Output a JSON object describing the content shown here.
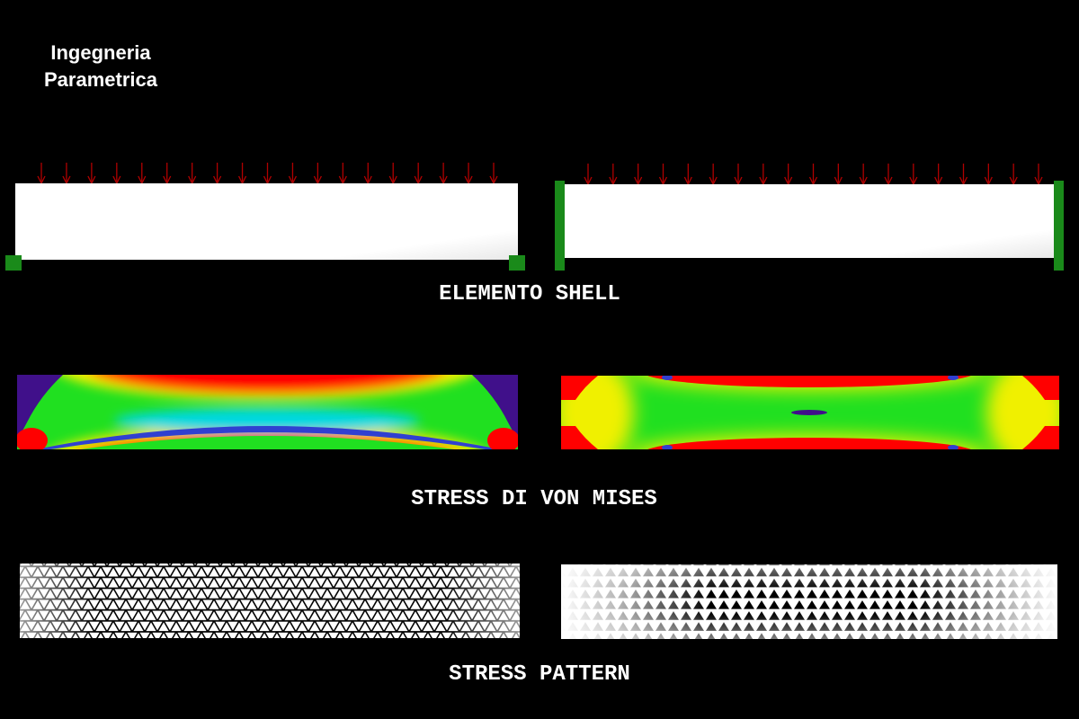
{
  "brand": {
    "line1": "Ingegneria",
    "line2": "Parametrica"
  },
  "sections": {
    "shell_title": "ELEMENTO SHELL",
    "von_mises_title": "STRESS DI VON MISES",
    "pattern_title": "STRESS PATTERN"
  },
  "colors": {
    "background": "#000000",
    "load_arrow": "#b00000",
    "support": "#1a8a1a",
    "beam": "#ffffff",
    "stress_red": "#ff0000",
    "stress_yellow": "#f0f000",
    "stress_green": "#20e020",
    "stress_cyan": "#00d8e0",
    "stress_blue": "#3040d0",
    "stress_purple": "#40108a"
  }
}
